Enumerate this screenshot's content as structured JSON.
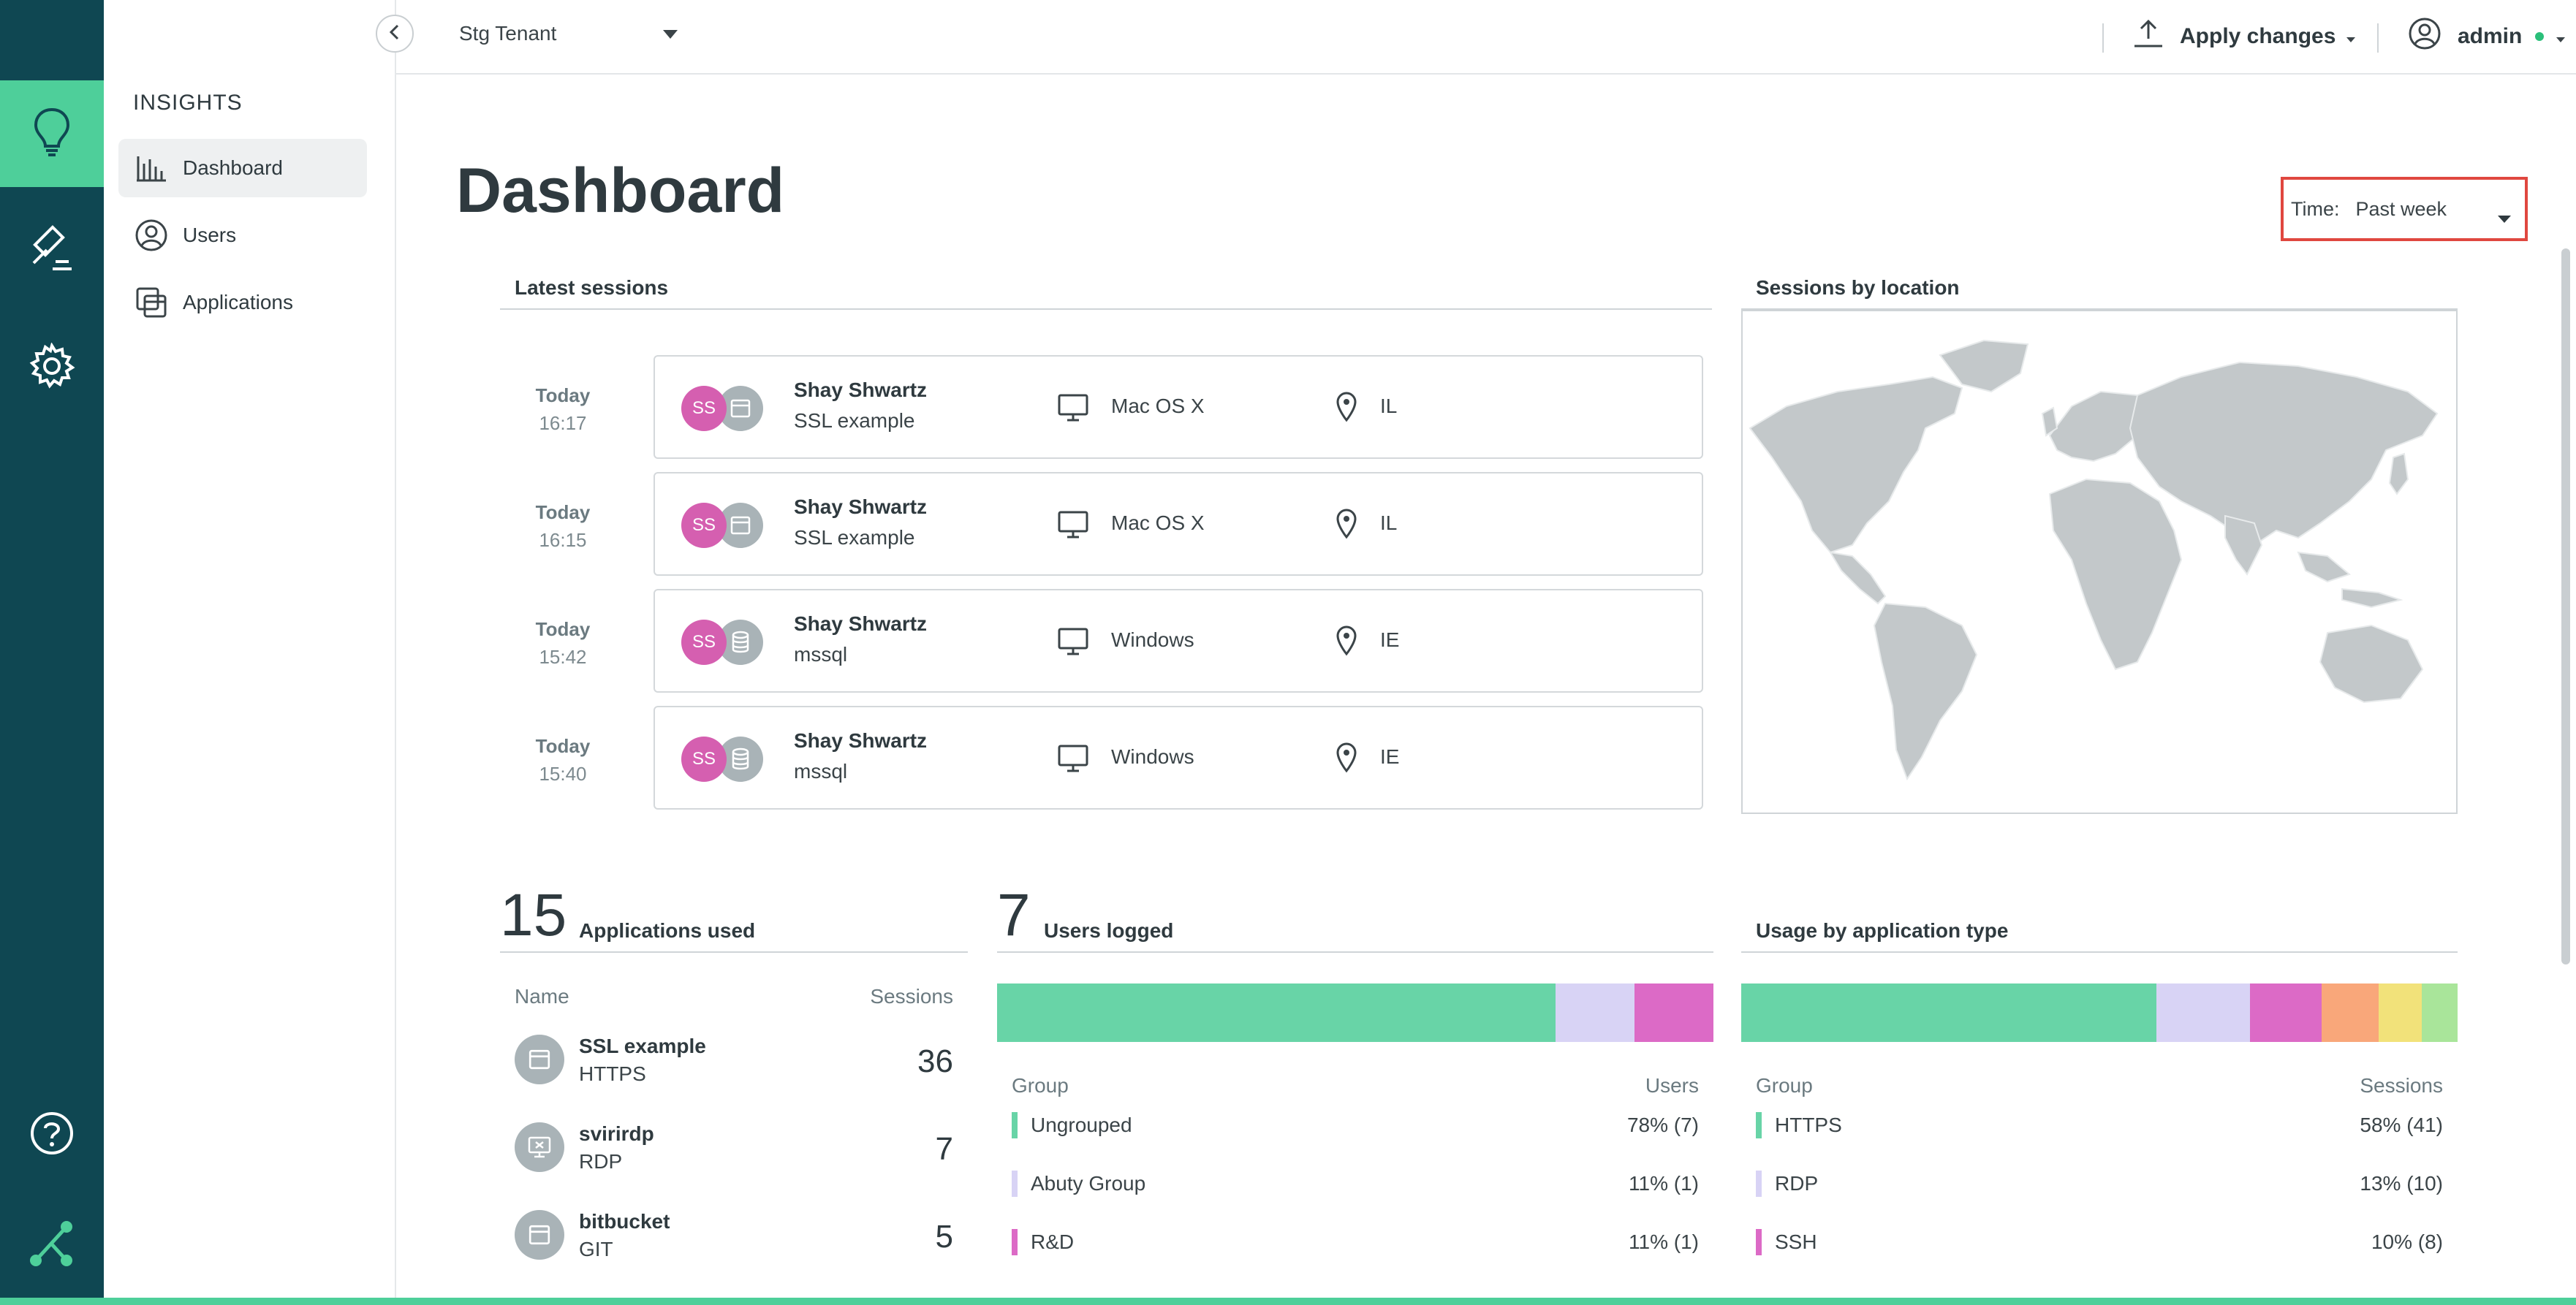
{
  "sidebar": {
    "section_title": "INSIGHTS",
    "items": [
      {
        "label": "Dashboard",
        "icon": "bar-chart-icon",
        "active": true
      },
      {
        "label": "Users",
        "icon": "user-circle-icon"
      },
      {
        "label": "Applications",
        "icon": "applications-icon"
      }
    ]
  },
  "rail": {
    "icons": [
      "lightbulb-icon",
      "gavel-icon",
      "gear-icon",
      "help-icon",
      "connection-logo-icon"
    ],
    "accent": "#4ecf9a",
    "background": "#0f4752"
  },
  "topbar": {
    "tenant": "Stg Tenant",
    "apply_label": "Apply changes",
    "user_label": "admin"
  },
  "page": {
    "title": "Dashboard",
    "time_label": "Time:",
    "time_value": "Past week"
  },
  "latest_sessions": {
    "title": "Latest sessions",
    "rows": [
      {
        "day": "Today",
        "time": "16:17",
        "initials": "SS",
        "user": "Shay Shwartz",
        "app": "SSL example",
        "app_icon": "web-app-icon",
        "os": "Mac OS X",
        "location": "IL"
      },
      {
        "day": "Today",
        "time": "16:15",
        "initials": "SS",
        "user": "Shay Shwartz",
        "app": "SSL example",
        "app_icon": "web-app-icon",
        "os": "Mac OS X",
        "location": "IL"
      },
      {
        "day": "Today",
        "time": "15:42",
        "initials": "SS",
        "user": "Shay Shwartz",
        "app": "mssql",
        "app_icon": "database-icon",
        "os": "Windows",
        "location": "IE"
      },
      {
        "day": "Today",
        "time": "15:40",
        "initials": "SS",
        "user": "Shay Shwartz",
        "app": "mssql",
        "app_icon": "database-icon",
        "os": "Windows",
        "location": "IE"
      }
    ]
  },
  "sessions_by_location": {
    "title": "Sessions by location"
  },
  "applications_used": {
    "count": "15",
    "title": "Applications used",
    "col_name": "Name",
    "col_sessions": "Sessions",
    "rows": [
      {
        "name": "SSL example",
        "type": "HTTPS",
        "sessions": "36",
        "icon": "web-app-icon"
      },
      {
        "name": "svirirdp",
        "type": "RDP",
        "sessions": "7",
        "icon": "remote-desktop-icon"
      },
      {
        "name": "bitbucket",
        "type": "GIT",
        "sessions": "5",
        "icon": "web-app-icon"
      }
    ]
  },
  "users_logged": {
    "count": "7",
    "title": "Users logged",
    "col_group": "Group",
    "col_users": "Users",
    "segments": [
      {
        "name": "Ungrouped",
        "value": "78% (7)",
        "fraction": 0.78,
        "color": "#68d4a7"
      },
      {
        "name": "Abuty Group",
        "value": "11% (1)",
        "fraction": 0.11,
        "color": "#d8d3f5"
      },
      {
        "name": "R&D",
        "value": "11% (1)",
        "fraction": 0.11,
        "color": "#dc6ac6"
      }
    ]
  },
  "usage_by_app_type": {
    "title": "Usage by application type",
    "col_group": "Group",
    "col_sessions": "Sessions",
    "segments": [
      {
        "name": "HTTPS",
        "value": "58% (41)",
        "fraction": 0.58,
        "color": "#68d4a7"
      },
      {
        "name": "RDP",
        "value": "13% (10)",
        "fraction": 0.13,
        "color": "#d8d3f5"
      },
      {
        "name": "SSH",
        "value": "10% (8)",
        "fraction": 0.1,
        "color": "#dc6ac6"
      },
      {
        "fraction": 0.08,
        "color": "#f9a77a"
      },
      {
        "fraction": 0.06,
        "color": "#f2e27a"
      },
      {
        "fraction": 0.05,
        "color": "#a9e59a"
      }
    ]
  }
}
